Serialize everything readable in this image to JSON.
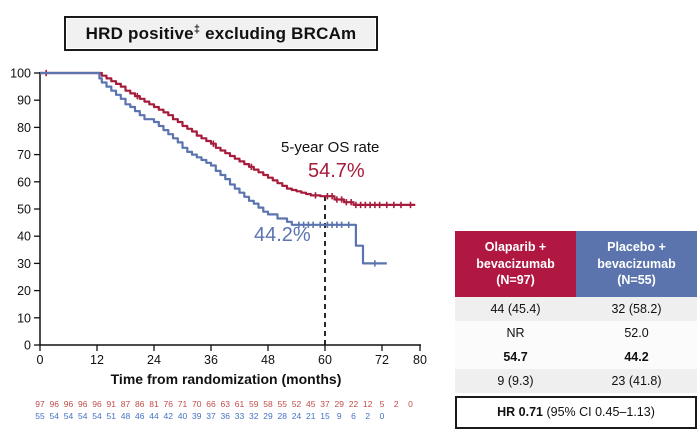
{
  "title": {
    "pre": "HRD positive",
    "sup": "‡",
    "post": " excluding BRCAm"
  },
  "chart_data": {
    "type": "line",
    "subtype": "kaplan-meier-step",
    "title": "HRD positive‡ excluding BRCAm",
    "xlabel": "Time from randomization (months)",
    "ylabel": "",
    "xlim": [
      0,
      80
    ],
    "ylim": [
      0,
      100
    ],
    "x_ticks": [
      0,
      12,
      24,
      36,
      48,
      60,
      72,
      80
    ],
    "y_ticks": [
      0,
      10,
      20,
      30,
      40,
      50,
      60,
      70,
      80,
      90,
      100
    ],
    "grid": false,
    "dashed_reference_line_x": 60,
    "annotation_label": "5-year OS rate",
    "series": [
      {
        "name": "Olaparib + bevacizumab",
        "color": "#A61C3C",
        "five_year_os_pct": 54.7,
        "five_year_os_label": "54.7%",
        "steps": [
          [
            0,
            100
          ],
          [
            13,
            99
          ],
          [
            14,
            98
          ],
          [
            15,
            97
          ],
          [
            16,
            96
          ],
          [
            17,
            95
          ],
          [
            18,
            93.5
          ],
          [
            19,
            92.5
          ],
          [
            20,
            91.5
          ],
          [
            21,
            90.5
          ],
          [
            22,
            89.5
          ],
          [
            23,
            88.5
          ],
          [
            24,
            87.5
          ],
          [
            25,
            86.5
          ],
          [
            26,
            85.5
          ],
          [
            27,
            84.5
          ],
          [
            28,
            83
          ],
          [
            29,
            82
          ],
          [
            30,
            80.5
          ],
          [
            31,
            79.5
          ],
          [
            32,
            78.5
          ],
          [
            33,
            77
          ],
          [
            34,
            76
          ],
          [
            35,
            75
          ],
          [
            36,
            74
          ],
          [
            37,
            72.5
          ],
          [
            38,
            71.5
          ],
          [
            39,
            70.5
          ],
          [
            40,
            69.5
          ],
          [
            41,
            68.5
          ],
          [
            42,
            67.5
          ],
          [
            43,
            66.5
          ],
          [
            44,
            65.5
          ],
          [
            45,
            64.5
          ],
          [
            46,
            63.5
          ],
          [
            47,
            62.5
          ],
          [
            48,
            61.5
          ],
          [
            49,
            60.5
          ],
          [
            50,
            59.5
          ],
          [
            51,
            58.5
          ],
          [
            52,
            57.5
          ],
          [
            53,
            57
          ],
          [
            54,
            56.5
          ],
          [
            55,
            56
          ],
          [
            56,
            55.5
          ],
          [
            57,
            55
          ],
          [
            59,
            54.7
          ],
          [
            62,
            53.5
          ],
          [
            64,
            52.5
          ],
          [
            66,
            51.5
          ],
          [
            79,
            51.5
          ]
        ],
        "censor_months": [
          1.3,
          20.5,
          36.5,
          44.5,
          58,
          60.5,
          61.5,
          62.5,
          63.5,
          64.5,
          65.5,
          66.5,
          67.5,
          68.5,
          69.5,
          70.5,
          71.5,
          73,
          74.5,
          76,
          78
        ]
      },
      {
        "name": "Placebo + bevacizumab",
        "color": "#5B74B0",
        "five_year_os_pct": 44.2,
        "five_year_os_label": "44.2%",
        "steps": [
          [
            0,
            100
          ],
          [
            12.5,
            98
          ],
          [
            13,
            96.5
          ],
          [
            14,
            95
          ],
          [
            15,
            93.5
          ],
          [
            16,
            92
          ],
          [
            17,
            90.5
          ],
          [
            18,
            88.5
          ],
          [
            19,
            87.5
          ],
          [
            20,
            86
          ],
          [
            21,
            84.5
          ],
          [
            22,
            83
          ],
          [
            24,
            82
          ],
          [
            25,
            80.5
          ],
          [
            26,
            79
          ],
          [
            27,
            77.5
          ],
          [
            28,
            76
          ],
          [
            29,
            74.5
          ],
          [
            30,
            72.5
          ],
          [
            31,
            71
          ],
          [
            32,
            70
          ],
          [
            33,
            69
          ],
          [
            34,
            68
          ],
          [
            35,
            67
          ],
          [
            36,
            66
          ],
          [
            37,
            64
          ],
          [
            38,
            62.5
          ],
          [
            39,
            61
          ],
          [
            40,
            59
          ],
          [
            41,
            57.5
          ],
          [
            42,
            56
          ],
          [
            43,
            54.5
          ],
          [
            44,
            53
          ],
          [
            45,
            52
          ],
          [
            46,
            50.5
          ],
          [
            47,
            49
          ],
          [
            48,
            48
          ],
          [
            50,
            46.5
          ],
          [
            52,
            45.3
          ],
          [
            53,
            44.2
          ],
          [
            66.5,
            36.5
          ],
          [
            68,
            30
          ],
          [
            73,
            30
          ]
        ],
        "censor_months": [
          54.5,
          55.5,
          56.5,
          57.5,
          59,
          60.5,
          61.5,
          62.5,
          63.5,
          65,
          70.5
        ]
      }
    ],
    "at_risk": {
      "interval_months": 3,
      "rows": [
        {
          "name": "Olaparib + bevacizumab",
          "color": "#BE4B48",
          "values": [
            97,
            96,
            96,
            96,
            96,
            91,
            87,
            86,
            81,
            76,
            71,
            70,
            66,
            63,
            61,
            59,
            58,
            55,
            52,
            45,
            37,
            29,
            22,
            12,
            5,
            2,
            0
          ]
        },
        {
          "name": "Placebo + bevacizumab",
          "color": "#4472C4",
          "values": [
            55,
            54,
            54,
            54,
            54,
            51,
            48,
            46,
            44,
            42,
            40,
            39,
            37,
            36,
            33,
            32,
            29,
            28,
            24,
            21,
            15,
            9,
            6,
            2,
            0
          ]
        }
      ]
    }
  },
  "table": {
    "headers": [
      {
        "line1": "Olaparib +",
        "line2": "bevacizumab",
        "line3": "(N=97)",
        "bg": "#B01842"
      },
      {
        "line1": "Placebo +",
        "line2": "bevacizumab",
        "line3": "(N=55)",
        "bg": "#5B74AE"
      }
    ],
    "rows": [
      [
        "44 (45.4)",
        "32 (58.2)"
      ],
      [
        "NR",
        "52.0"
      ],
      [
        "54.7",
        "44.2"
      ],
      [
        "9 (9.3)",
        "23 (41.8)"
      ]
    ],
    "bold_row_index": 2,
    "row_shade_color": "#EFEFEF",
    "row_plain_color": "#FBFBFB",
    "footer": {
      "bold": "HR 0.71",
      "rest": " (95% CI 0.45–1.13)"
    }
  }
}
